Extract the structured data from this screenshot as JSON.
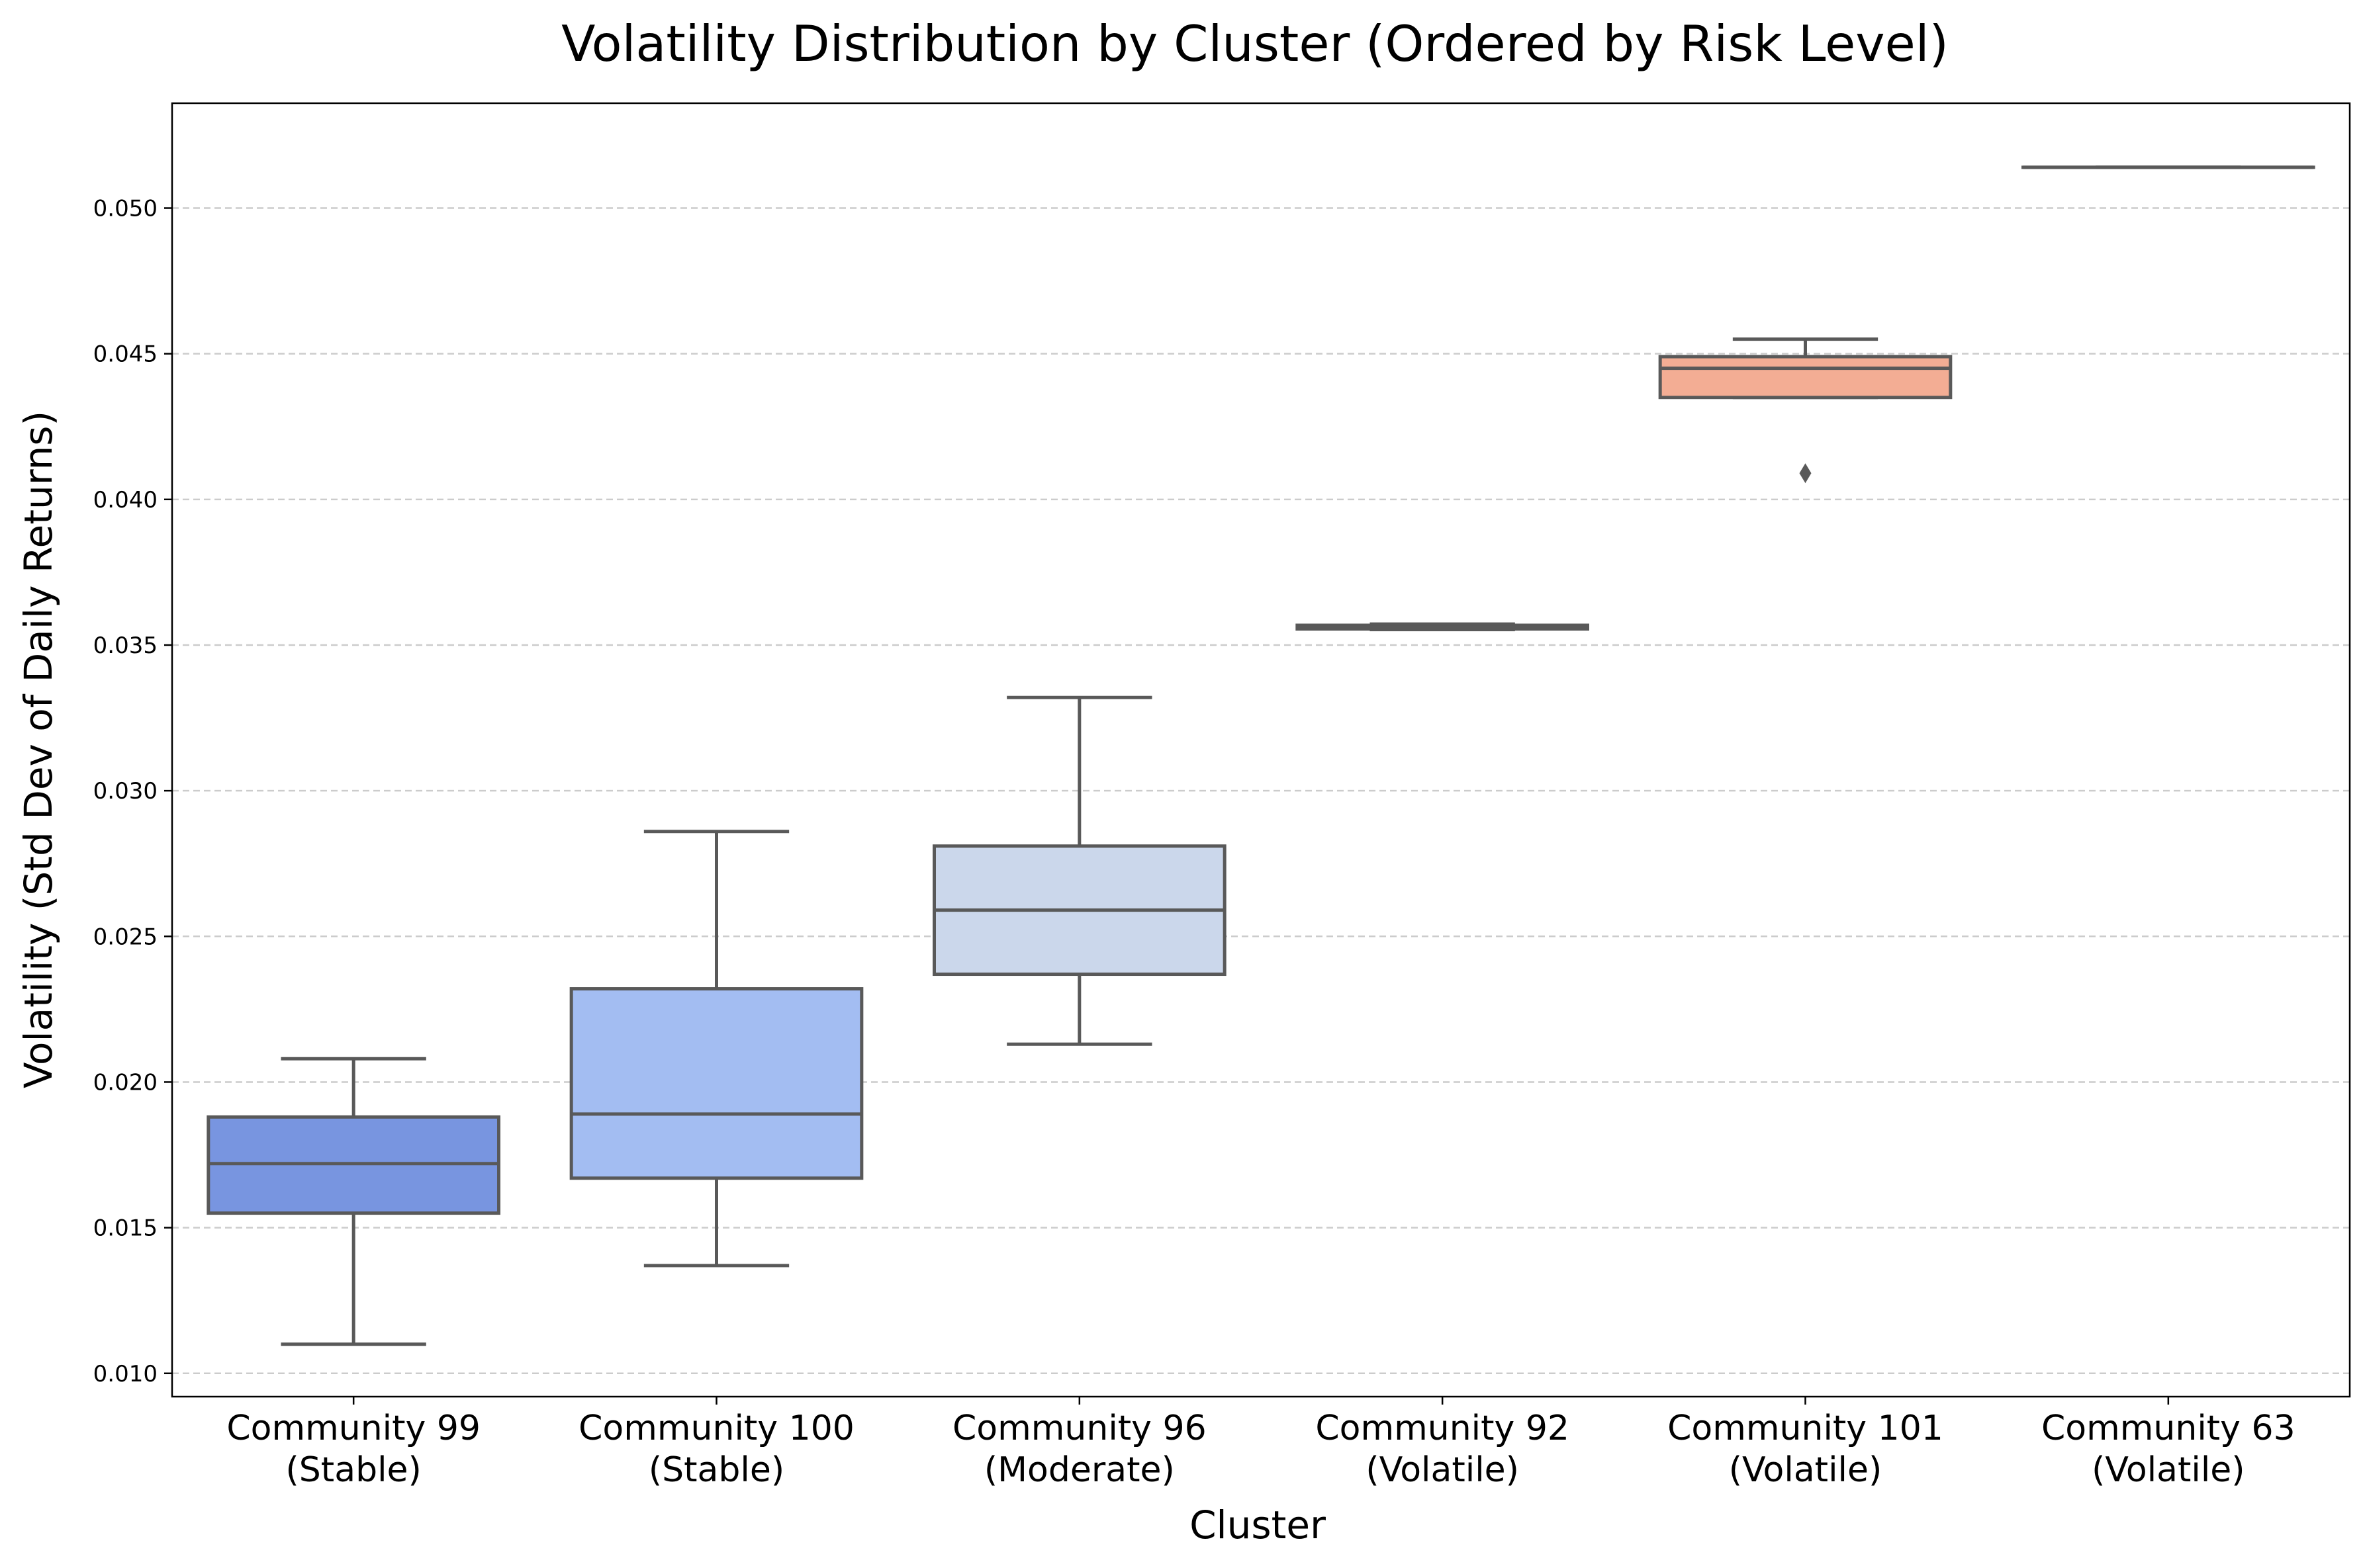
{
  "chart_data": {
    "type": "box",
    "title": "Volatility Distribution by Cluster (Ordered by Risk Level)",
    "xlabel": "Cluster",
    "ylabel": "Volatility (Std Dev of Daily Returns)",
    "ylim": [
      0.0092,
      0.0536
    ],
    "yticks": [
      "0.010",
      "0.015",
      "0.020",
      "0.025",
      "0.030",
      "0.035",
      "0.040",
      "0.045",
      "0.050"
    ],
    "ytick_values": [
      0.01,
      0.015,
      0.02,
      0.025,
      0.03,
      0.035,
      0.04,
      0.045,
      0.05
    ],
    "grid": {
      "axis": "y",
      "style": "dashed"
    },
    "categories": [
      {
        "line1": "Community 99",
        "line2": "(Stable)"
      },
      {
        "line1": "Community 100",
        "line2": "(Stable)"
      },
      {
        "line1": "Community 96",
        "line2": "(Moderate)"
      },
      {
        "line1": "Community 92",
        "line2": "(Volatile)"
      },
      {
        "line1": "Community 101",
        "line2": "(Volatile)"
      },
      {
        "line1": "Community 63",
        "line2": "(Volatile)"
      }
    ],
    "boxes": [
      {
        "whisker_low": 0.011,
        "q1": 0.0155,
        "median": 0.0172,
        "q3": 0.0188,
        "whisker_high": 0.0208,
        "outliers": [],
        "color": "#7895e0"
      },
      {
        "whisker_low": 0.0137,
        "q1": 0.0167,
        "median": 0.0189,
        "q3": 0.0232,
        "whisker_high": 0.0286,
        "outliers": [],
        "color": "#a3bdf2"
      },
      {
        "whisker_low": 0.0213,
        "q1": 0.0237,
        "median": 0.0259,
        "q3": 0.0281,
        "whisker_high": 0.0332,
        "outliers": [],
        "color": "#cbd7eb"
      },
      {
        "whisker_low": 0.03553,
        "q1": 0.03555,
        "median": 0.03562,
        "q3": 0.03568,
        "whisker_high": 0.03572,
        "outliers": [],
        "color": "#e2dcd9"
      },
      {
        "whisker_low": 0.0435,
        "q1": 0.0435,
        "median": 0.0445,
        "q3": 0.0449,
        "whisker_high": 0.0455,
        "outliers": [
          0.0409
        ],
        "color": "#f3ad94"
      },
      {
        "whisker_low": 0.0514,
        "q1": 0.0514,
        "median": 0.0514,
        "q3": 0.0514,
        "whisker_high": 0.0514,
        "outliers": [],
        "color": "#e27e67"
      }
    ],
    "line_color": "#595959",
    "grid_color": "#cccccc"
  }
}
